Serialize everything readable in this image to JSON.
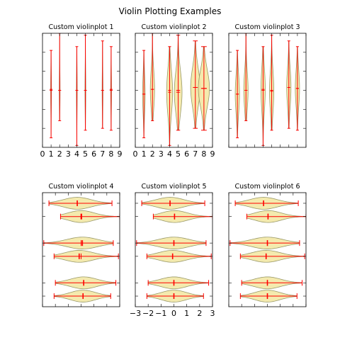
{
  "title": "Violin Plotting Examples",
  "colors": {
    "line": "#ff0000",
    "body_fill": "#f2e6a0",
    "body_edge": "#9a9a6a",
    "axis": "#000000"
  },
  "chart_data": [
    {
      "type": "violin",
      "title": "Custom violinplot 1",
      "orientation": "vertical",
      "positions": [
        1,
        2,
        4,
        5,
        7,
        8
      ],
      "widths": [
        0.1,
        0.1,
        0.1,
        0.1,
        0.1,
        0.1
      ],
      "xlim": [
        0,
        9
      ],
      "xticks": [
        "0",
        "1",
        "2",
        "3",
        "4",
        "5",
        "6",
        "7",
        "8",
        "9"
      ],
      "ylim": [
        -3.0,
        3.0
      ],
      "show_yticklabels": false,
      "violins": [
        {
          "min": -2.5,
          "max": 2.1,
          "mean": 0.05,
          "median": 0.0
        },
        {
          "min": -1.6,
          "max": 3.0,
          "mean": 0.0,
          "median": 0.0
        },
        {
          "min": -2.9,
          "max": 2.3,
          "mean": 0.0,
          "median": 0.0
        },
        {
          "min": -2.1,
          "max": 2.9,
          "mean": 0.0,
          "median": 0.0
        },
        {
          "min": -2.0,
          "max": 2.6,
          "mean": 0.0,
          "median": 0.0
        },
        {
          "min": -2.1,
          "max": 2.3,
          "mean": 0.05,
          "median": 0.0
        }
      ]
    },
    {
      "type": "violin",
      "title": "Custom violinplot 2",
      "orientation": "vertical",
      "positions": [
        1,
        2,
        4,
        5,
        7,
        8
      ],
      "widths": [
        0.3,
        0.5,
        0.7,
        0.9,
        1.1,
        1.3
      ],
      "xlim": [
        0,
        9
      ],
      "xticks": [
        "0",
        "1",
        "2",
        "3",
        "4",
        "5",
        "6",
        "7",
        "8",
        "9"
      ],
      "ylim": [
        -3.0,
        3.0
      ],
      "show_yticklabels": false,
      "violins": [
        {
          "min": -2.5,
          "max": 2.1,
          "mean": -0.2,
          "median": -0.2
        },
        {
          "min": -1.6,
          "max": 3.0,
          "mean": 0.05,
          "median": 0.05
        },
        {
          "min": -2.9,
          "max": 2.3,
          "mean": 0.0,
          "median": -0.1
        },
        {
          "min": -2.1,
          "max": 2.9,
          "mean": 0.0,
          "median": -0.1
        },
        {
          "min": -2.0,
          "max": 2.6,
          "mean": 0.15,
          "median": 0.15
        },
        {
          "min": -2.1,
          "max": 2.3,
          "mean": 0.1,
          "median": 0.1
        }
      ]
    },
    {
      "type": "violin",
      "title": "Custom violinplot 3",
      "orientation": "vertical",
      "positions": [
        1,
        2,
        4,
        5,
        7,
        8
      ],
      "widths": [
        0.5,
        0.5,
        0.5,
        0.5,
        0.5,
        0.5
      ],
      "xlim": [
        0,
        9
      ],
      "xticks": [],
      "ylim": [
        -3.0,
        3.0
      ],
      "show_yticklabels": false,
      "violins": [
        {
          "min": -2.5,
          "max": 2.1,
          "mean": -0.2,
          "median": -0.2
        },
        {
          "min": -1.6,
          "max": 3.0,
          "mean": 0.0,
          "median": 0.0
        },
        {
          "min": -2.9,
          "max": 2.3,
          "mean": 0.0,
          "median": 0.05
        },
        {
          "min": -2.1,
          "max": 2.9,
          "mean": 0.0,
          "median": -0.05
        },
        {
          "min": -2.0,
          "max": 2.6,
          "mean": 0.15,
          "median": 0.15
        },
        {
          "min": -2.1,
          "max": 2.3,
          "mean": 0.1,
          "median": 0.1
        }
      ]
    },
    {
      "type": "violin",
      "title": "Custom violinplot 4",
      "orientation": "horizontal",
      "positions": [
        1,
        2,
        4,
        5,
        7,
        8
      ],
      "widths": [
        0.9,
        0.9,
        0.9,
        0.9,
        0.9,
        0.9
      ],
      "xlim": [
        -3.0,
        3.0
      ],
      "xticks": [],
      "ylim": [
        0.2,
        8.8
      ],
      "show_yticklabels": false,
      "violins": [
        {
          "min": -2.1,
          "max": 2.3,
          "mean": 0.15,
          "median": 0.15
        },
        {
          "min": -2.0,
          "max": 2.7,
          "mean": 0.2,
          "median": 0.2
        },
        {
          "min": -2.1,
          "max": 2.9,
          "mean": 0.0,
          "median": -0.15
        },
        {
          "min": -2.9,
          "max": 2.5,
          "mean": 0.0,
          "median": 0.1
        },
        {
          "min": -1.6,
          "max": 3.0,
          "mean": 0.05,
          "median": 0.0
        },
        {
          "min": -2.5,
          "max": 2.4,
          "mean": -0.3,
          "median": -0.3
        }
      ]
    },
    {
      "type": "violin",
      "title": "Custom violinplot 5",
      "orientation": "horizontal",
      "positions": [
        1,
        2,
        4,
        5,
        7,
        8
      ],
      "widths": [
        0.9,
        0.9,
        0.9,
        0.9,
        0.9,
        0.9
      ],
      "xlim": [
        -3.0,
        3.0
      ],
      "xticks": [
        "−3",
        "−2",
        "−1",
        "0",
        "1",
        "2",
        "3"
      ],
      "ylim": [
        0.2,
        8.8
      ],
      "show_yticklabels": false,
      "violins": [
        {
          "min": -2.1,
          "max": 2.3,
          "mean": 0.0,
          "median": 0.0
        },
        {
          "min": -2.0,
          "max": 2.7,
          "mean": 0.0,
          "median": 0.0
        },
        {
          "min": -2.1,
          "max": 2.9,
          "mean": -0.1,
          "median": -0.1
        },
        {
          "min": -2.9,
          "max": 2.5,
          "mean": 0.0,
          "median": 0.0
        },
        {
          "min": -1.6,
          "max": 3.0,
          "mean": 0.05,
          "median": 0.05
        },
        {
          "min": -2.5,
          "max": 2.4,
          "mean": -0.3,
          "median": -0.3
        }
      ]
    },
    {
      "type": "violin",
      "title": "Custom violinplot 6",
      "orientation": "horizontal",
      "positions": [
        1,
        2,
        4,
        5,
        7,
        8
      ],
      "widths": [
        0.9,
        0.9,
        0.9,
        0.9,
        0.9,
        0.9
      ],
      "xlim": [
        -3.0,
        3.0
      ],
      "xticks": [],
      "ylim": [
        0.2,
        8.8
      ],
      "show_yticklabels": false,
      "violins": [
        {
          "min": -2.1,
          "max": 2.3,
          "mean": 0.0,
          "median": 0.0
        },
        {
          "min": -2.0,
          "max": 2.7,
          "mean": 0.0,
          "median": 0.0
        },
        {
          "min": -2.1,
          "max": 2.9,
          "mean": -0.1,
          "median": -0.1
        },
        {
          "min": -2.9,
          "max": 2.5,
          "mean": 0.0,
          "median": 0.0
        },
        {
          "min": -1.6,
          "max": 3.0,
          "mean": 0.05,
          "median": 0.05
        },
        {
          "min": -2.5,
          "max": 2.4,
          "mean": -0.3,
          "median": -0.3
        }
      ]
    }
  ]
}
